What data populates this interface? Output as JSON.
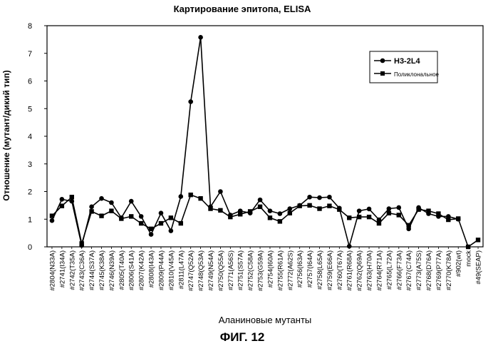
{
  "chart_data": {
    "type": "line",
    "title": "Картирование эпитопа, ELISA",
    "xlabel": "Аланиновые мутанты",
    "ylabel": "Отношение (мутант/дикий тип)",
    "ylim": [
      0,
      8
    ],
    "yticks": [
      0,
      1,
      2,
      3,
      4,
      5,
      6,
      7,
      8
    ],
    "grid": false,
    "legend_position": "top-right",
    "categories": [
      "#2804(N33A)",
      "#2741(I34A)",
      "#2742(T35A)",
      "#2743(C36A)",
      "#2744(S37A)",
      "#2745(K38A)",
      "#2746(N39A)",
      "#2805(T40A)",
      "#2806(S41A)",
      "#2807(K42A)",
      "#2808(I43A)",
      "#2809(P44A)",
      "#2810(V45A)",
      "#2811(L47A)",
      "#2747(Q52A)",
      "#2748(Q53A)",
      "#2749(N54A)",
      "#2750(Q55A)",
      "#2771(A56S)",
      "#2751(S57A)",
      "#2752(C58A)",
      "#2753(G59A)",
      "#2754(I60A)",
      "#2755(R61A)",
      "#2772(A62S)",
      "#2756(I63A)",
      "#2757(I64A)",
      "#2758(L65A)",
      "#2759(E66A)",
      "#2760(T67A)",
      "#2761(R68A)",
      "#2762(Q69A)",
      "#2763(H70A)",
      "#2764(R71A)",
      "#2765(L72A)",
      "#2766(F73A)",
      "#2767(C74A)",
      "#2773(A75S)",
      "#2768(D76A)",
      "#2769(P77A)",
      "#2770(K78A)",
      "#902(wt)",
      "mock",
      "#49(SEAP)"
    ],
    "series": [
      {
        "name": "H3-2L4",
        "marker": "circle",
        "values": [
          0.95,
          1.72,
          1.65,
          0.05,
          1.45,
          1.75,
          1.6,
          1.05,
          1.65,
          1.1,
          0.45,
          1.22,
          0.58,
          1.82,
          5.25,
          7.58,
          1.45,
          2.0,
          1.15,
          1.3,
          1.22,
          1.7,
          1.3,
          1.2,
          1.38,
          1.5,
          1.8,
          1.78,
          1.8,
          1.4,
          0.02,
          1.3,
          1.37,
          0.98,
          1.38,
          1.42,
          0.65,
          1.42,
          1.2,
          1.1,
          1.1,
          1.0,
          null,
          null
        ]
      },
      {
        "name": "Поликлональное",
        "marker": "square",
        "values": [
          1.12,
          1.48,
          1.8,
          0.12,
          1.28,
          1.12,
          1.3,
          1.02,
          1.1,
          0.85,
          0.65,
          0.85,
          1.05,
          0.85,
          1.88,
          1.75,
          1.38,
          1.32,
          1.08,
          1.18,
          1.28,
          1.45,
          1.05,
          0.92,
          1.22,
          1.48,
          1.5,
          1.38,
          1.48,
          1.35,
          1.05,
          1.08,
          1.08,
          0.85,
          1.22,
          1.15,
          0.78,
          1.35,
          1.3,
          1.2,
          0.98,
          1.02,
          0.0,
          0.25
        ]
      }
    ]
  },
  "figure_caption": "ФИГ. 12"
}
